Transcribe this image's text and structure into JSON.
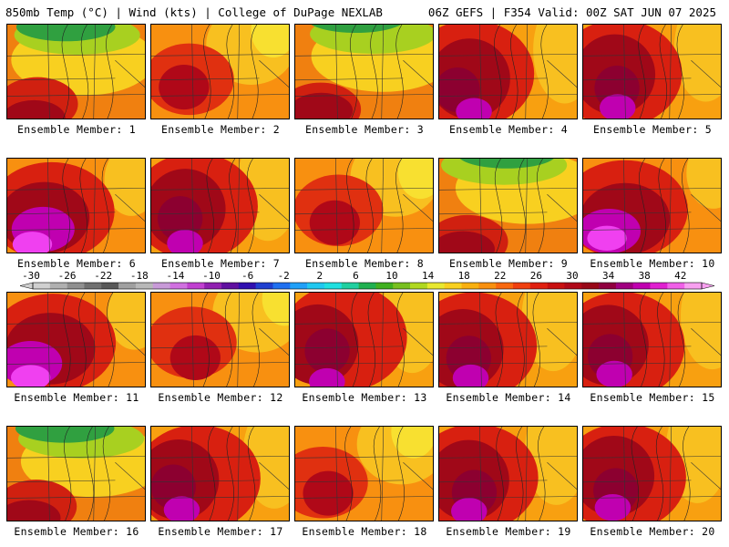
{
  "header": {
    "left": "850mb Temp (°C) | Wind (kts) | College of DuPage NEXLAB",
    "right": "06Z GEFS | F354 Valid: 00Z SAT JUN 07 2025"
  },
  "members": [
    {
      "label": "Ensemble Member: 1",
      "scheme": "green-north"
    },
    {
      "label": "Ensemble Member: 2",
      "scheme": "warm-orange"
    },
    {
      "label": "Ensemble Member: 3",
      "scheme": "green-north"
    },
    {
      "label": "Ensemble Member: 4",
      "scheme": "hot-west"
    },
    {
      "label": "Ensemble Member: 5",
      "scheme": "hot-west"
    },
    {
      "label": "Ensemble Member: 6",
      "scheme": "hot-southwest"
    },
    {
      "label": "Ensemble Member: 7",
      "scheme": "hot-west"
    },
    {
      "label": "Ensemble Member: 8",
      "scheme": "warm-orange"
    },
    {
      "label": "Ensemble Member: 9",
      "scheme": "green-north"
    },
    {
      "label": "Ensemble Member: 10",
      "scheme": "hot-southwest"
    },
    {
      "label": "Ensemble Member: 11",
      "scheme": "hot-southwest"
    },
    {
      "label": "Ensemble Member: 12",
      "scheme": "warm-orange"
    },
    {
      "label": "Ensemble Member: 13",
      "scheme": "hot-west"
    },
    {
      "label": "Ensemble Member: 14",
      "scheme": "hot-west"
    },
    {
      "label": "Ensemble Member: 15",
      "scheme": "hot-west"
    },
    {
      "label": "Ensemble Member: 16",
      "scheme": "green-north"
    },
    {
      "label": "Ensemble Member: 17",
      "scheme": "hot-west"
    },
    {
      "label": "Ensemble Member: 18",
      "scheme": "warm-orange"
    },
    {
      "label": "Ensemble Member: 19",
      "scheme": "hot-west"
    },
    {
      "label": "Ensemble Member: 20",
      "scheme": "hot-west"
    }
  ],
  "colorbar": {
    "ticks": [
      "-30",
      "-26",
      "-22",
      "-18",
      "-14",
      "-10",
      "-6",
      "-2",
      "2",
      "6",
      "10",
      "14",
      "18",
      "22",
      "26",
      "30",
      "34",
      "38",
      "42"
    ],
    "colors": [
      "#d0d0d0",
      "#b0b0b0",
      "#909090",
      "#707070",
      "#585858",
      "#a0a0a0",
      "#b8b8b8",
      "#c89ad8",
      "#d070e0",
      "#c040d0",
      "#9020b0",
      "#6010a0",
      "#3010b0",
      "#2040d0",
      "#2070f0",
      "#20a0f8",
      "#20c8f0",
      "#20e0e0",
      "#20d0a0",
      "#20b050",
      "#40b020",
      "#78c020",
      "#b0d820",
      "#e8e830",
      "#f8d020",
      "#f8b010",
      "#f89010",
      "#f86810",
      "#f04010",
      "#e02010",
      "#c81010",
      "#b00818",
      "#980818",
      "#900040",
      "#a00080",
      "#c000b0",
      "#e020d0",
      "#f060e8",
      "#f8a0f0"
    ]
  }
}
